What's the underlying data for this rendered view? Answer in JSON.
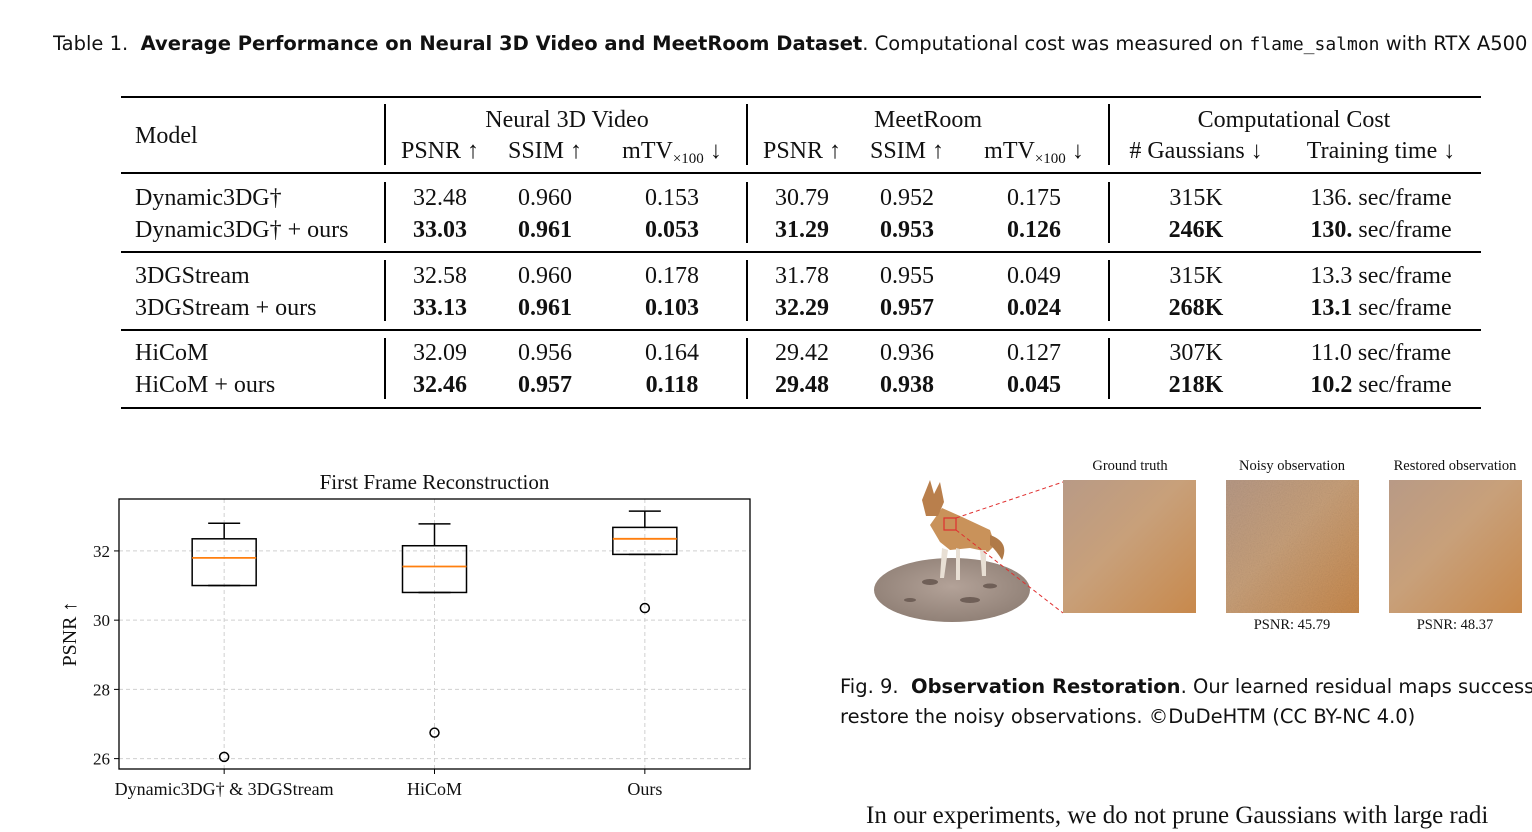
{
  "caption": {
    "label": "Table 1.",
    "title": "Average Performance on Neural 3D Video and MeetRoom Dataset",
    "text_before_code": ". Computational cost was measured on ",
    "code": "flame_salmon",
    "text_after_code": " with RTX A500"
  },
  "table": {
    "model_header": "Model",
    "group_headers": [
      "Neural 3D Video",
      "MeetRoom",
      "Computational Cost"
    ],
    "psnr_header": "PSNR ↑",
    "ssim_header": "SSIM ↑",
    "mtv_main": "mTV",
    "mtv_sub": "×100",
    "mtv_arrow": " ↓",
    "gauss_header": "# Gaussians ↓",
    "time_header": "Training time ↓",
    "rows": [
      [
        "Dynamic3DG†",
        "32.48",
        "0.960",
        "0.153",
        "30.79",
        "0.952",
        "0.175",
        "315K",
        "136.",
        " sec/frame"
      ],
      [
        "Dynamic3DG† + ours",
        "33.03",
        "0.961",
        "0.053",
        "31.29",
        "0.953",
        "0.126",
        "246K",
        "130.",
        " sec/frame"
      ],
      [
        "3DGStream",
        "32.58",
        "0.960",
        "0.178",
        "31.78",
        "0.955",
        "0.049",
        "315K",
        "13.3",
        " sec/frame"
      ],
      [
        "3DGStream + ours",
        "33.13",
        "0.961",
        "0.103",
        "32.29",
        "0.957",
        "0.024",
        "268K",
        "13.1",
        " sec/frame"
      ],
      [
        "HiCoM",
        "32.09",
        "0.956",
        "0.164",
        "29.42",
        "0.936",
        "0.127",
        "307K",
        "11.0",
        " sec/frame"
      ],
      [
        "HiCoM + ours",
        "32.46",
        "0.957",
        "0.118",
        "29.48",
        "0.938",
        "0.045",
        "218K",
        "10.2",
        " sec/frame"
      ]
    ]
  },
  "chart_data": {
    "type": "box",
    "title": "First Frame Reconstruction",
    "ylabel": "PSNR ↑",
    "xlabel": "",
    "categories": [
      "Dynamic3DG† & 3DGStream",
      "HiCoM",
      "Ours"
    ],
    "yticks": [
      "26",
      "28",
      "30",
      "32"
    ],
    "ylim": [
      25.7,
      33.5
    ],
    "grid": true,
    "boxes": [
      {
        "whisker_low": 31.0,
        "q1": 31.0,
        "median": 31.8,
        "q3": 32.35,
        "whisker_high": 32.8,
        "outliers": [
          26.05
        ]
      },
      {
        "whisker_low": 30.8,
        "q1": 30.8,
        "median": 31.55,
        "q3": 32.15,
        "whisker_high": 32.78,
        "outliers": [
          26.75
        ]
      },
      {
        "whisker_low": 31.9,
        "q1": 31.9,
        "median": 32.35,
        "q3": 32.68,
        "whisker_high": 33.15,
        "outliers": [
          30.35
        ]
      }
    ],
    "colors": {
      "median": "#ff7f0e",
      "box": "#000000",
      "grid": "#d0d0d0"
    }
  },
  "fig9": {
    "labels": [
      "Ground truth",
      "Noisy observation",
      "Restored observation"
    ],
    "psnr_labels": [
      "PSNR: 45.79",
      "PSNR: 48.37"
    ],
    "caption_label": "Fig. 9.",
    "caption_title": "Observation Restoration",
    "caption_line1": ". Our learned residual maps successf",
    "caption_line2": "restore the noisy observations. ©DuDeHTM (CC BY-NC 4.0)"
  },
  "body_text": "In our experiments, we do not prune Gaussians with large radi"
}
